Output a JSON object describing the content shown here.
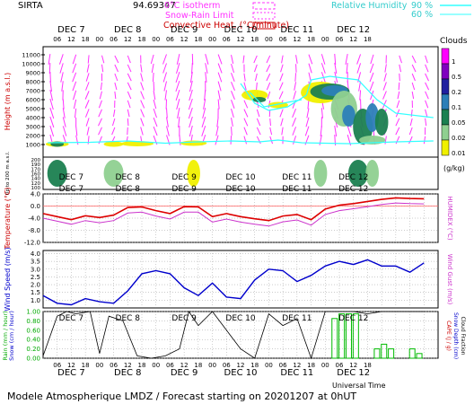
{
  "header": {
    "station": "SIRTA",
    "altitude_code": "94.69347",
    "legend_isotherm": "0°C isotherm",
    "legend_snow_rain": "Snow-Rain Limit",
    "legend_convective": "Convective Heat. (°C/minute)",
    "legend_rh": "Relative Humidity",
    "rh_levels": [
      "90 %",
      "60 %"
    ]
  },
  "time_axis": {
    "day_labels": [
      "DEC 7",
      "DEC 8",
      "DEC 9",
      "DEC 10",
      "DEC 11",
      "DEC 12"
    ],
    "hour_ticks": [
      "06",
      "12",
      "18",
      "00",
      "06",
      "12",
      "18",
      "00",
      "06",
      "12",
      "18",
      "00",
      "06",
      "12",
      "18",
      "00",
      "06",
      "12",
      "18",
      "00",
      "06",
      "12",
      "18"
    ],
    "xlabel": "Universal Time"
  },
  "footer": "Modele Atmospherique LMDZ / Forecast starting on 20201207 at 0hUT",
  "colors": {
    "isotherm": "#ff33ff",
    "rh": "#33ffff",
    "temperature": "#dd0000",
    "humidex": "#cc33cc",
    "wind": "#0000cc",
    "cloud_fraction": "#000000",
    "rain": "#00bb00",
    "snow": "#0000cc"
  },
  "chart_data": [
    {
      "type": "heatmap",
      "panel": "clouds",
      "ylabel": "Height (m a.s.l.)",
      "ylabel_low": "Up to 200 m a.s.l.",
      "yticks_upper": [
        "11000",
        "10000",
        "9000",
        "8000",
        "7000",
        "6000",
        "5000",
        "4000",
        "3000",
        "2000",
        "1000"
      ],
      "yticks_lower": [
        "200",
        "190",
        "170",
        "160",
        "140",
        "120",
        "100"
      ],
      "colorbar_title": "Clouds",
      "colorbar_unit": "(g/kg)",
      "colorbar_levels": [
        "1",
        "0.5",
        "0.2",
        "0.1",
        "0.05",
        "0.02",
        "0.01"
      ],
      "colorbar_colors": [
        "#ff00ff",
        "#8000c0",
        "#2020a0",
        "#2c7fb8",
        "#1b8050",
        "#8fd090",
        "#f0f000"
      ],
      "cloud_blobs": [
        {
          "t": 6,
          "h": 1050,
          "w": 3.5,
          "d": 150,
          "level": 0.01
        },
        {
          "t": 6,
          "h": 1050,
          "w": 2,
          "d": 100,
          "level": 0.05
        },
        {
          "t": 30,
          "h": 1050,
          "w": 3,
          "d": 120,
          "level": 0.01
        },
        {
          "t": 40,
          "h": 1100,
          "w": 5,
          "d": 120,
          "level": 0.01
        },
        {
          "t": 64,
          "h": 1150,
          "w": 4,
          "d": 120,
          "level": 0.01
        },
        {
          "t": 90,
          "h": 6500,
          "w": 4,
          "d": 600,
          "level": 0.01
        },
        {
          "t": 92,
          "h": 6000,
          "w": 2,
          "d": 300,
          "level": 0.05
        },
        {
          "t": 100,
          "h": 5400,
          "w": 3,
          "d": 350,
          "level": 0.01
        },
        {
          "t": 118,
          "h": 6800,
          "w": 6,
          "d": 1200,
          "level": 0.01
        },
        {
          "t": 122,
          "h": 6900,
          "w": 6,
          "d": 900,
          "level": 0.05
        },
        {
          "t": 124,
          "h": 7000,
          "w": 4,
          "d": 600,
          "level": 0.1
        },
        {
          "t": 128,
          "h": 5000,
          "w": 4,
          "d": 2000,
          "level": 0.02
        },
        {
          "t": 130,
          "h": 4200,
          "w": 2,
          "d": 1200,
          "level": 0.1
        },
        {
          "t": 136,
          "h": 3000,
          "w": 3,
          "d": 2000,
          "level": 0.05
        },
        {
          "t": 140,
          "h": 4000,
          "w": 2,
          "d": 1600,
          "level": 0.1
        },
        {
          "t": 144,
          "h": 3500,
          "w": 2,
          "d": 1500,
          "level": 0.05
        },
        {
          "t": 140,
          "h": 1500,
          "w": 4,
          "d": 500,
          "level": 0.02
        }
      ],
      "low_cloud_blobs": [
        {
          "t": 6,
          "h": 150,
          "w": 3,
          "d": 40,
          "level": 0.05
        },
        {
          "t": 30,
          "h": 150,
          "w": 3,
          "d": 40,
          "level": 0.02
        },
        {
          "t": 64,
          "h": 150,
          "w": 2,
          "d": 30,
          "level": 0.01
        },
        {
          "t": 118,
          "h": 150,
          "w": 2,
          "d": 30,
          "level": 0.02
        },
        {
          "t": 134,
          "h": 150,
          "w": 3,
          "d": 40,
          "level": 0.05
        },
        {
          "t": 140,
          "h": 150,
          "w": 2,
          "d": 40,
          "level": 0.02
        }
      ]
    },
    {
      "type": "line",
      "panel": "temperature",
      "ylabel": "Temperature (°C)",
      "ylabel_right": "HUMIDEX (°C)",
      "yticks": [
        "4.0",
        "0.0",
        "-4.0",
        "-8.0",
        "-12.0"
      ],
      "ylim": [
        -12,
        4
      ],
      "x": [
        0,
        6,
        12,
        18,
        24,
        30,
        36,
        42,
        48,
        54,
        60,
        66,
        72,
        78,
        84,
        90,
        96,
        102,
        108,
        114,
        120,
        126,
        132,
        138,
        144,
        150,
        156,
        162
      ],
      "series": [
        {
          "values": [
            -2.5,
            -3.5,
            -4.5,
            -3.2,
            -3.8,
            -3,
            -0.5,
            -0.3,
            -1.5,
            -2.5,
            -0.2,
            -0.3,
            -3.5,
            -2.5,
            -3.5,
            -4.2,
            -4.8,
            -3.3,
            -2.8,
            -4.5,
            -1,
            0.3,
            0.8,
            1.5,
            2.2,
            2.7,
            2.5,
            2.4
          ]
        },
        {
          "values": [
            -4,
            -5,
            -6,
            -4.8,
            -5.5,
            -4.8,
            -2.3,
            -2,
            -3.3,
            -4.3,
            -2,
            -2,
            -5.3,
            -4.3,
            -5.3,
            -6,
            -6.6,
            -5.2,
            -4.6,
            -6.3,
            -2.8,
            -1.5,
            -0.9,
            -0.2,
            0.5,
            1,
            0.8,
            0.7
          ]
        }
      ]
    },
    {
      "type": "line",
      "panel": "wind",
      "ylabel": "Wind Speed (m/s)",
      "ylabel_right": "Wind Gust (m/s)",
      "yticks": [
        "4.0",
        "3.5",
        "3.0",
        "2.5",
        "2.0",
        "1.5",
        "1.0"
      ],
      "ylim": [
        0.5,
        4.2
      ],
      "x": [
        0,
        6,
        12,
        18,
        24,
        30,
        36,
        42,
        48,
        54,
        60,
        66,
        72,
        78,
        84,
        90,
        96,
        102,
        108,
        114,
        120,
        126,
        132,
        138,
        144,
        150,
        156,
        162
      ],
      "values": [
        1.3,
        0.8,
        0.7,
        1.1,
        0.9,
        0.8,
        1.6,
        2.7,
        2.9,
        2.7,
        1.8,
        1.3,
        2.1,
        1.2,
        1.1,
        2.3,
        3.0,
        2.9,
        2.2,
        2.6,
        3.2,
        3.5,
        3.3,
        3.6,
        3.2,
        3.2,
        2.8,
        3.4
      ]
    },
    {
      "type": "bar",
      "panel": "precipitation",
      "ylabel_left": [
        "Rain (mm / hour)",
        "Snow (cm / hour)"
      ],
      "ylabel_right": [
        "CAPE (J / g)",
        "Snow Depth (cm)",
        "Cloud Fraction"
      ],
      "yticks": [
        "1.00",
        "0.80",
        "0.60",
        "0.40",
        "0.20",
        "0.00"
      ],
      "ylim": [
        0,
        1
      ],
      "cloud_fraction_x": [
        0,
        6,
        10,
        14,
        20,
        24,
        28,
        34,
        40,
        46,
        52,
        58,
        62,
        66,
        72,
        78,
        84,
        90,
        96,
        102,
        108,
        114,
        120,
        126,
        132,
        138,
        144,
        150,
        156,
        162
      ],
      "cloud_fraction": [
        0.05,
        0.9,
        1.0,
        0.95,
        1.0,
        0.1,
        0.9,
        0.8,
        0.05,
        0.0,
        0.05,
        0.2,
        1.0,
        0.7,
        1.0,
        0.6,
        0.2,
        0.0,
        0.95,
        0.7,
        0.85,
        0.0,
        1.0,
        1.0,
        1.0,
        0.95,
        1.0,
        1.0,
        1.0,
        1.0
      ],
      "rain_bars": [
        {
          "t": 124,
          "v": 0.85
        },
        {
          "t": 127,
          "v": 0.95
        },
        {
          "t": 130,
          "v": 0.95
        },
        {
          "t": 133,
          "v": 0.95
        },
        {
          "t": 142,
          "v": 0.2
        },
        {
          "t": 145,
          "v": 0.3
        },
        {
          "t": 148,
          "v": 0.2
        },
        {
          "t": 157,
          "v": 0.2
        },
        {
          "t": 160,
          "v": 0.1
        }
      ]
    }
  ]
}
